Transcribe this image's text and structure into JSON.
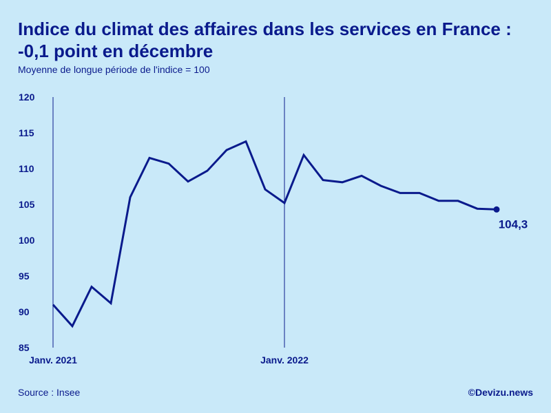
{
  "header": {
    "title": "Indice du climat des affaires dans les services en France : -0,1 point en décembre",
    "subtitle": "Moyenne de longue période de l'indice = 100"
  },
  "footer": {
    "source": "Source : Insee",
    "credit": "©Devizu.news"
  },
  "colors": {
    "background": "#c9e9f9",
    "line": "#0a1a8c"
  },
  "chart_data": {
    "type": "line",
    "title": "Indice du climat des affaires dans les services en France : -0,1 point en décembre",
    "subtitle": "Moyenne de longue période de l'indice = 100",
    "xlabel": "",
    "ylabel": "",
    "ylim": [
      85,
      120
    ],
    "yticks": [
      85,
      90,
      95,
      100,
      105,
      110,
      115,
      120
    ],
    "ytick_labels": [
      "85",
      "90",
      "95",
      "100",
      "105",
      "110",
      "115",
      "120"
    ],
    "x_marker_labels": [
      "Janv. 2021",
      "Janv. 2022"
    ],
    "x_markers": [
      "2021-01",
      "2022-01"
    ],
    "grid": false,
    "x": [
      "2021-01",
      "2021-02",
      "2021-03",
      "2021-04",
      "2021-05",
      "2021-06",
      "2021-07",
      "2021-08",
      "2021-09",
      "2021-10",
      "2021-11",
      "2021-12",
      "2022-01",
      "2022-02",
      "2022-03",
      "2022-04",
      "2022-05",
      "2022-06",
      "2022-07",
      "2022-08",
      "2022-09",
      "2022-10",
      "2022-11",
      "2022-12"
    ],
    "values": [
      91.0,
      88.0,
      93.5,
      91.2,
      106.0,
      111.5,
      110.7,
      108.2,
      109.7,
      112.6,
      113.8,
      107.1,
      105.2,
      111.9,
      108.4,
      108.1,
      109.0,
      107.6,
      106.6,
      106.6,
      105.5,
      105.5,
      104.4,
      104.3
    ],
    "last_value_label": "104,3"
  }
}
